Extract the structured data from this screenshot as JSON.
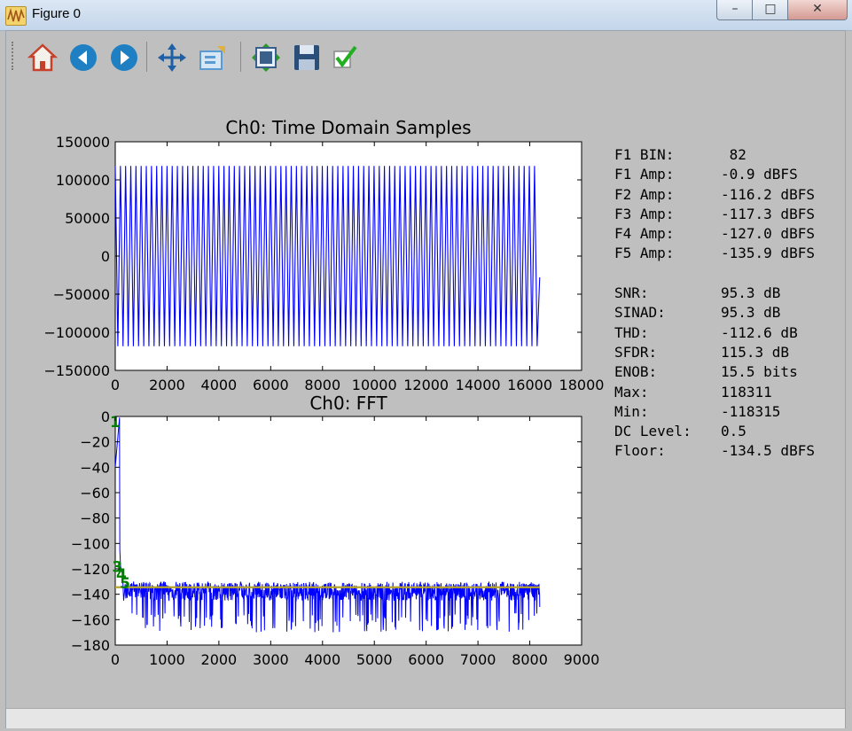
{
  "window": {
    "title": "Figure 0",
    "min_glyph": "–",
    "max_glyph": "□",
    "close_glyph": "✕"
  },
  "toolbar": {
    "buttons": [
      {
        "name": "home-icon",
        "color": "#d9462e"
      },
      {
        "name": "back-icon",
        "color": "#1e7fc2"
      },
      {
        "name": "forward-icon",
        "color": "#1e7fc2"
      },
      {
        "name": "pan-icon",
        "color": "#1f5fa6"
      },
      {
        "name": "zoom-icon",
        "color": "#5a9bd3"
      },
      {
        "name": "subplots-icon",
        "color": "#3a5f8a"
      },
      {
        "name": "save-icon",
        "color": "#2a4f7a"
      },
      {
        "name": "checkmark-icon",
        "color": "#22b022"
      }
    ]
  },
  "chart_data": [
    {
      "type": "line",
      "title": "Ch0: Time Domain Samples",
      "xlim": [
        0,
        18000
      ],
      "ylim": [
        -150000,
        150000
      ],
      "xticks": [
        "0",
        "2000",
        "4000",
        "6000",
        "8000",
        "10000",
        "12000",
        "14000",
        "16000",
        "18000"
      ],
      "yticks": [
        "150000",
        "100000",
        "50000",
        "0",
        "−50000",
        "−100000",
        "−150000"
      ],
      "series": [
        {
          "color": "#0000ff",
          "x_range": [
            0,
            16383
          ],
          "amplitude": 118311,
          "cycles_approx": 82,
          "ends_at": -28000
        }
      ]
    },
    {
      "type": "line",
      "title": "Ch0: FFT",
      "xlim": [
        0,
        9000
      ],
      "ylim": [
        -180,
        0
      ],
      "xticks": [
        "0",
        "1000",
        "2000",
        "3000",
        "4000",
        "5000",
        "6000",
        "7000",
        "8000",
        "9000"
      ],
      "yticks": [
        "0",
        "−20",
        "−40",
        "−60",
        "−80",
        "−100",
        "−120",
        "−140",
        "−160",
        "−180"
      ],
      "series": [
        {
          "color": "#0000ff",
          "x_range": [
            0,
            8192
          ],
          "peak_bin": 82,
          "peak_db": -0.9,
          "noise_top": -130,
          "noise_bottom": -170
        },
        {
          "color": "#b5a428",
          "y": -134.5
        }
      ],
      "harmonic_markers": [
        {
          "label": "1",
          "x": 0,
          "y": 0
        },
        {
          "label": "3",
          "x": 40,
          "y": -114
        },
        {
          "label": "4",
          "x": 120,
          "y": -120
        },
        {
          "label": "5",
          "x": 190,
          "y": -127
        }
      ],
      "marker_color": "#008000"
    }
  ],
  "stats": [
    {
      "key": "F1 BIN:",
      "value": " 82"
    },
    {
      "key": "F1 Amp:",
      "value": "-0.9 dBFS"
    },
    {
      "key": "F2 Amp:",
      "value": "-116.2 dBFS"
    },
    {
      "key": "F3 Amp:",
      "value": "-117.3 dBFS"
    },
    {
      "key": "F4 Amp:",
      "value": "-127.0 dBFS"
    },
    {
      "key": "F5 Amp:",
      "value": "-135.9 dBFS"
    },
    {
      "gap": true
    },
    {
      "key": "SNR:",
      "value": "95.3 dB"
    },
    {
      "key": "SINAD:",
      "value": "95.3 dB"
    },
    {
      "key": "THD:",
      "value": "-112.6 dB"
    },
    {
      "key": "SFDR:",
      "value": "115.3 dB"
    },
    {
      "key": "ENOB:",
      "value": "15.5 bits"
    },
    {
      "key": "Max:",
      "value": "118311"
    },
    {
      "key": "Min:",
      "value": "-118315"
    },
    {
      "key": "DC Level:",
      "value": "0.5"
    },
    {
      "key": "Floor:",
      "value": "-134.5 dBFS"
    }
  ]
}
